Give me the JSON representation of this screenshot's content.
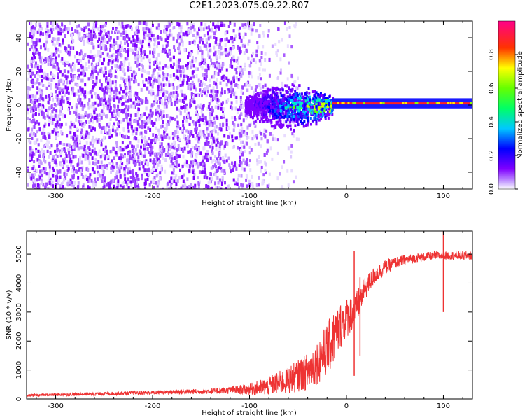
{
  "title": "C2E1.2023.075.09.22.R07",
  "chart_data": [
    {
      "type": "heatmap",
      "xlabel": "Height of straight line (km)",
      "ylabel": "Frequency (Hz)",
      "xlim": [
        -330,
        130
      ],
      "ylim": [
        -50,
        50
      ],
      "xticks": [
        -300,
        -200,
        -100,
        0,
        100
      ],
      "yticks": [
        -40,
        -20,
        0,
        20,
        40
      ],
      "noise_extent_x": [
        -330,
        -70
      ],
      "signal_line": {
        "frequency": 1,
        "x_start": -15,
        "x_end": 130
      },
      "broad_region": {
        "x_start": -105,
        "x_end": -15,
        "frequency_spread": [
          -15,
          15
        ]
      },
      "colorbar": {
        "label": "Normalized spectral amplitude",
        "range": [
          0,
          1
        ],
        "ticks": [
          0.0,
          0.2,
          0.4,
          0.6,
          0.8
        ],
        "colors": [
          "#ffffff",
          "#7f00ff",
          "#0000ff",
          "#00ffff",
          "#00ff00",
          "#ffff00",
          "#ff0000",
          "#ff0088"
        ]
      }
    },
    {
      "type": "line",
      "xlabel": "Height of straight line (km)",
      "ylabel": "SNR (10 * v/v)",
      "xlim": [
        -330,
        130
      ],
      "ylim": [
        0,
        5800
      ],
      "xticks": [
        -300,
        -200,
        -100,
        0,
        100
      ],
      "yticks": [
        0,
        1000,
        2000,
        3000,
        4000,
        5000
      ],
      "color": "#ee3333",
      "x": [
        -330,
        -300,
        -250,
        -200,
        -150,
        -120,
        -100,
        -90,
        -80,
        -70,
        -60,
        -50,
        -40,
        -30,
        -20,
        -15,
        -10,
        -5,
        0,
        5,
        10,
        15,
        20,
        30,
        40,
        50,
        60,
        70,
        80,
        90,
        100,
        110,
        120,
        130
      ],
      "y": [
        120,
        150,
        180,
        220,
        260,
        300,
        340,
        380,
        450,
        550,
        650,
        800,
        950,
        1300,
        1700,
        2000,
        2300,
        2600,
        2800,
        2950,
        3100,
        3500,
        3850,
        4300,
        4550,
        4700,
        4800,
        4850,
        4900,
        4950,
        4950,
        4950,
        4950,
        4950
      ],
      "noise_amplitude": [
        40,
        50,
        60,
        70,
        90,
        120,
        200,
        260,
        330,
        400,
        480,
        550,
        650,
        800,
        900,
        950,
        900,
        800,
        700,
        650,
        600,
        500,
        400,
        300,
        250,
        200,
        180,
        160,
        150,
        150,
        150,
        150,
        150,
        150
      ],
      "spikes": [
        {
          "x": 100,
          "y": 5800,
          "y_min": 3000
        },
        {
          "x": 8,
          "y": 5100,
          "y_min": 800
        },
        {
          "x": 14,
          "y": 4200,
          "y_min": 1500
        }
      ]
    }
  ]
}
